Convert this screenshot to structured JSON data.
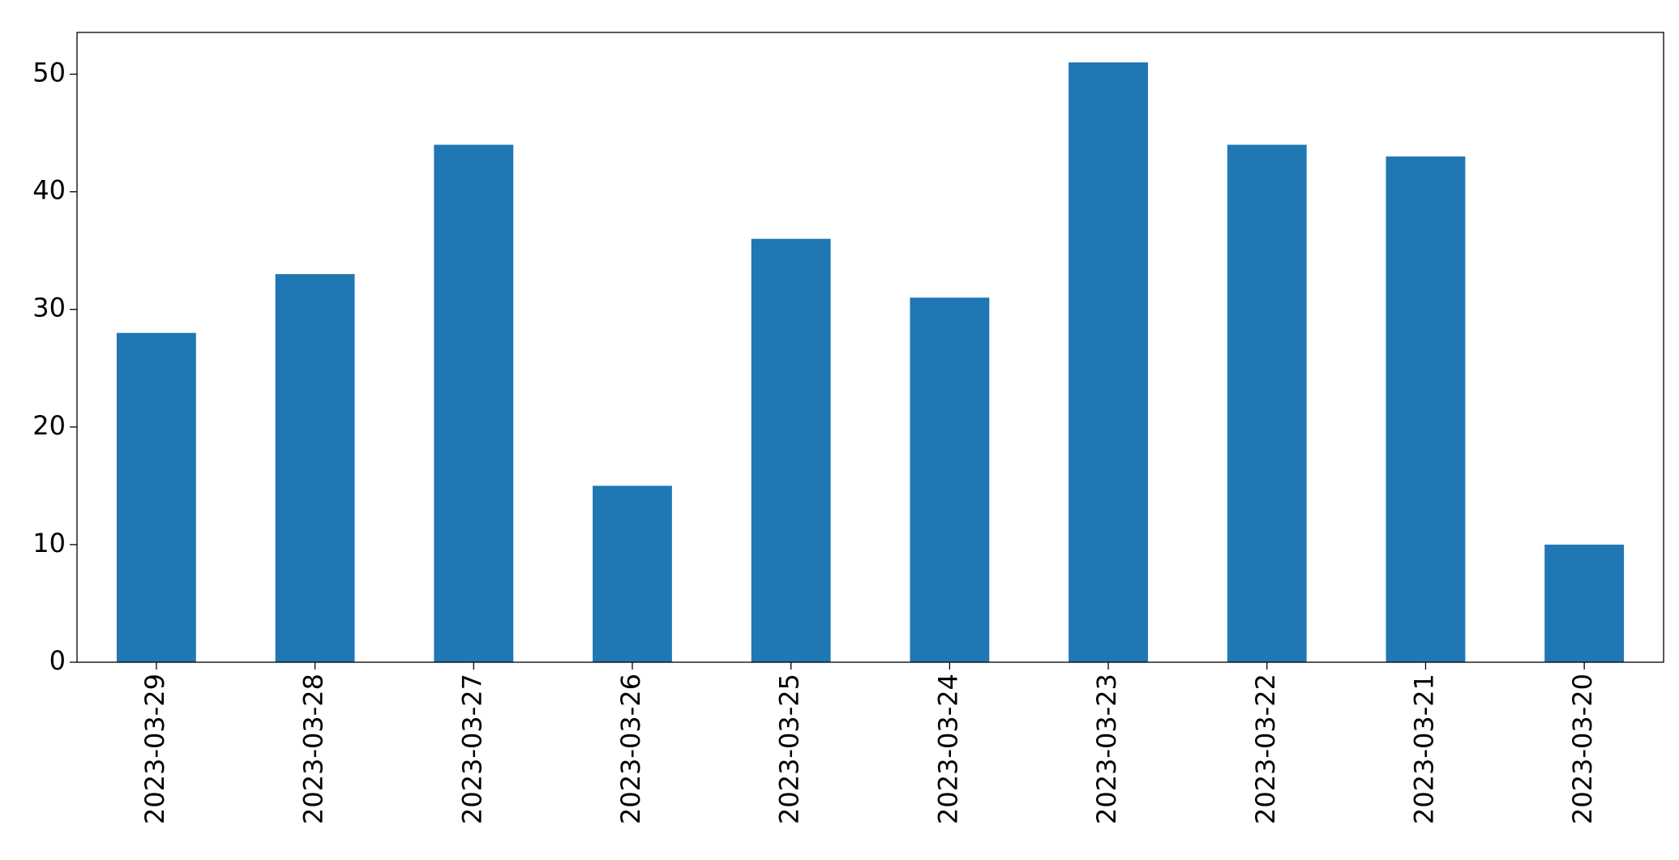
{
  "chart_data": {
    "type": "bar",
    "categories": [
      "2023-03-29",
      "2023-03-28",
      "2023-03-27",
      "2023-03-26",
      "2023-03-25",
      "2023-03-24",
      "2023-03-23",
      "2023-03-22",
      "2023-03-21",
      "2023-03-20"
    ],
    "values": [
      28,
      33,
      44,
      15,
      36,
      31,
      51,
      44,
      43,
      10
    ],
    "color": "#1f77b4",
    "ylim": [
      0,
      53.55
    ],
    "yticks": [
      0,
      10,
      20,
      30,
      40,
      50
    ],
    "grid": false
  }
}
